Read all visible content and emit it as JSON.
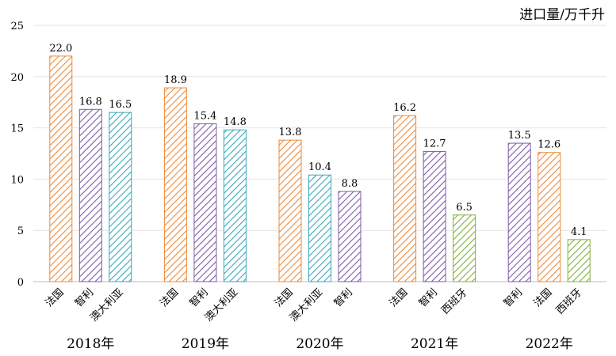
{
  "chart_data": {
    "type": "bar",
    "ylabel": "进口量/万千升",
    "ylim": [
      0,
      25
    ],
    "yticks": [
      0,
      5,
      10,
      15,
      20,
      25
    ],
    "grid": true,
    "colors": {
      "法国": "#ec8a3b",
      "智利": "#7d5ba6",
      "澳大利亚": "#3aa8b8",
      "西班牙": "#7fb03f"
    },
    "groups": [
      {
        "label": "2018年",
        "bars": [
          {
            "name": "法国",
            "value": 22.0,
            "label": "22.0"
          },
          {
            "name": "智利",
            "value": 16.8,
            "label": "16.8"
          },
          {
            "name": "澳大利亚",
            "value": 16.5,
            "label": "16.5"
          }
        ]
      },
      {
        "label": "2019年",
        "bars": [
          {
            "name": "法国",
            "value": 18.9,
            "label": "18.9"
          },
          {
            "name": "智利",
            "value": 15.4,
            "label": "15.4"
          },
          {
            "name": "澳大利亚",
            "value": 14.8,
            "label": "14.8"
          }
        ]
      },
      {
        "label": "2020年",
        "bars": [
          {
            "name": "法国",
            "value": 13.8,
            "label": "13.8"
          },
          {
            "name": "澳大利亚",
            "value": 10.4,
            "label": "10.4"
          },
          {
            "name": "智利",
            "value": 8.8,
            "label": "8.8"
          }
        ]
      },
      {
        "label": "2021年",
        "bars": [
          {
            "name": "法国",
            "value": 16.2,
            "label": "16.2"
          },
          {
            "name": "智利",
            "value": 12.7,
            "label": "12.7"
          },
          {
            "name": "西班牙",
            "value": 6.5,
            "label": "6.5"
          }
        ]
      },
      {
        "label": "2022年",
        "bars": [
          {
            "name": "智利",
            "value": 13.5,
            "label": "13.5"
          },
          {
            "name": "法国",
            "value": 12.6,
            "label": "12.6"
          },
          {
            "name": "西班牙",
            "value": 4.1,
            "label": "4.1"
          }
        ]
      }
    ]
  }
}
